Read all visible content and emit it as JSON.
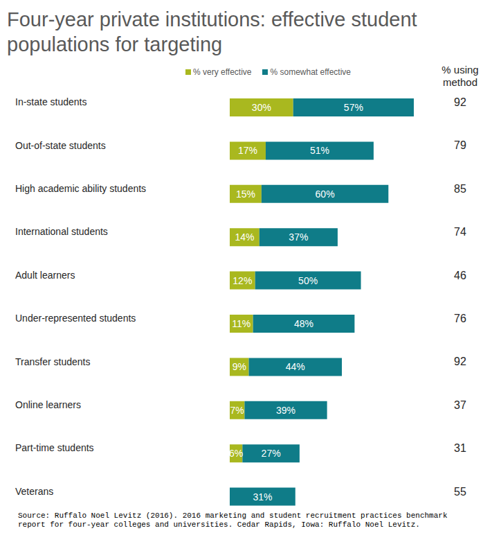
{
  "chart_data": {
    "type": "bar",
    "title": "Four-year private institutions: effective student populations for targeting",
    "orientation": "horizontal",
    "stacked": true,
    "data_labels": true,
    "legend": "top",
    "tick_labels": "y",
    "categories": [
      "In-state students",
      "Out-of-state students",
      "High academic ability students",
      "International students",
      "Adult learners",
      "Under-represented students",
      "Transfer students",
      "Online learners",
      "Part-time students",
      "Veterans"
    ],
    "series": [
      {
        "name": "% very effective",
        "color": "#a9b81f",
        "values": [
          30,
          17,
          15,
          14,
          12,
          11,
          9,
          7,
          6,
          0
        ],
        "value_labels": [
          "30%",
          "17%",
          "15%",
          "14%",
          "12%",
          "11%",
          "9%",
          "7%",
          "6%",
          null
        ]
      },
      {
        "name": "% somewhat effective",
        "color": "#0f7c88",
        "values": [
          57,
          51,
          60,
          37,
          50,
          48,
          44,
          39,
          27,
          31
        ],
        "value_labels": [
          "57%",
          "51%",
          "60%",
          "37%",
          "50%",
          "48%",
          "44%",
          "39%",
          "27%",
          "31%"
        ]
      }
    ],
    "columns": [
      {
        "header": "% using method",
        "values": [
          92,
          79,
          85,
          74,
          46,
          76,
          92,
          37,
          31,
          55
        ]
      }
    ],
    "source": "Source: Ruffalo Noel Levitz (2016). 2016 marketing and student recruitment practices benchmark report for four-year colleges and universities. Cedar Rapids, Iowa: Ruffalo Noel Levitz."
  }
}
